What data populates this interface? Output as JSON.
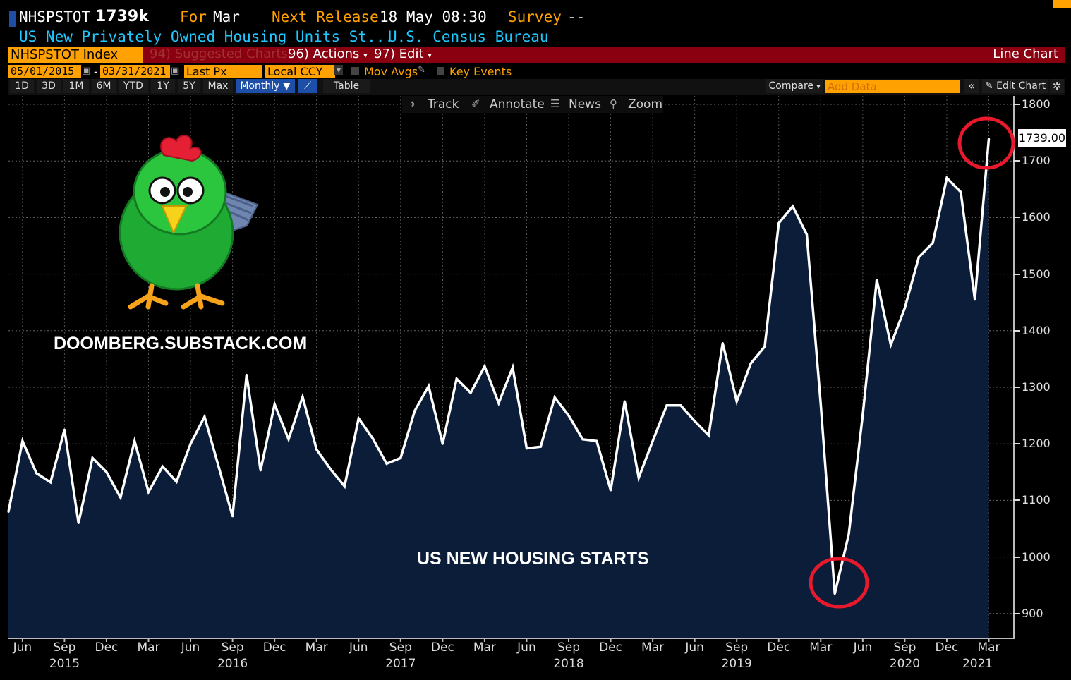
{
  "header": {
    "ticker": "NHSPSTOT",
    "last_value": "1739k",
    "for_label": "For",
    "for_value": "Mar",
    "next_release_label": "Next Release",
    "next_release_value": "18 May 08:30",
    "survey_label": "Survey",
    "survey_value": "--",
    "description": "US New Privately Owned Housing Units St...",
    "source": "U.S. Census Bureau"
  },
  "toolbar": {
    "security": "NHSPSTOT Index",
    "suggested_charts": "94) Suggested Charts",
    "actions": "96) Actions",
    "edit": "97) Edit",
    "chart_type": "Line Chart",
    "start_date": "05/01/2015",
    "date_sep": "-",
    "end_date": "03/31/2021",
    "field": "Last Px",
    "currency": "Local CCY",
    "mov_avgs": "Mov Avgs",
    "key_events": "Key Events",
    "ranges": [
      "1D",
      "3D",
      "1M",
      "6M",
      "YTD",
      "1Y",
      "5Y",
      "Max"
    ],
    "periodicity": "Monthly",
    "table": "Table",
    "compare": "Compare",
    "add_data_placeholder": "Add Data",
    "edit_chart": "Edit Chart",
    "plot_tools": [
      "Track",
      "Annotate",
      "News",
      "Zoom"
    ]
  },
  "overlay": {
    "brand": "DOOMBERG.SUBSTACK.COM",
    "caption": "US NEW HOUSING STARTS",
    "last_label": "1739.00"
  },
  "colors": {
    "background": "#000000",
    "area_fill": "#0b1d38",
    "line": "#ffffff",
    "highlight": "#e8192c",
    "accent": "#ffa100",
    "toolbar_red": "#8a0010"
  },
  "chart_data": {
    "type": "area",
    "title": "",
    "xlabel": "",
    "ylabel": "",
    "ylim": [
      860,
      1810
    ],
    "yticks": [
      900,
      1000,
      1100,
      1200,
      1300,
      1400,
      1500,
      1600,
      1700,
      1800
    ],
    "x_month_ticks": [
      "Jun",
      "Sep",
      "Dec",
      "Mar",
      "Jun",
      "Sep",
      "Dec",
      "Mar",
      "Jun",
      "Sep",
      "Dec",
      "Mar",
      "Jun",
      "Sep",
      "Dec",
      "Mar",
      "Jun",
      "Sep",
      "Dec",
      "Mar",
      "Jun",
      "Sep",
      "Dec",
      "Mar"
    ],
    "x_year_ticks": [
      "2015",
      "2016",
      "2017",
      "2018",
      "2019",
      "2020",
      "2021"
    ],
    "grid": true,
    "legend": "none",
    "series": [
      {
        "start": "2015-05",
        "end": "2021-03",
        "frequency": "monthly",
        "values": [
          1080,
          1205,
          1148,
          1132,
          1225,
          1060,
          1175,
          1150,
          1105,
          1205,
          1115,
          1160,
          1133,
          1200,
          1248,
          1160,
          1072,
          1322,
          1153,
          1270,
          1208,
          1283,
          1190,
          1155,
          1125,
          1245,
          1210,
          1165,
          1175,
          1258,
          1302,
          1200,
          1315,
          1290,
          1337,
          1272,
          1335,
          1192,
          1195,
          1282,
          1250,
          1208,
          1205,
          1118,
          1275,
          1140,
          1205,
          1268,
          1268,
          1240,
          1215,
          1378,
          1275,
          1342,
          1372,
          1590,
          1620,
          1570,
          1270,
          935,
          1040,
          1252,
          1490,
          1375,
          1440,
          1530,
          1555,
          1670,
          1645,
          1455,
          1739
        ]
      }
    ]
  }
}
